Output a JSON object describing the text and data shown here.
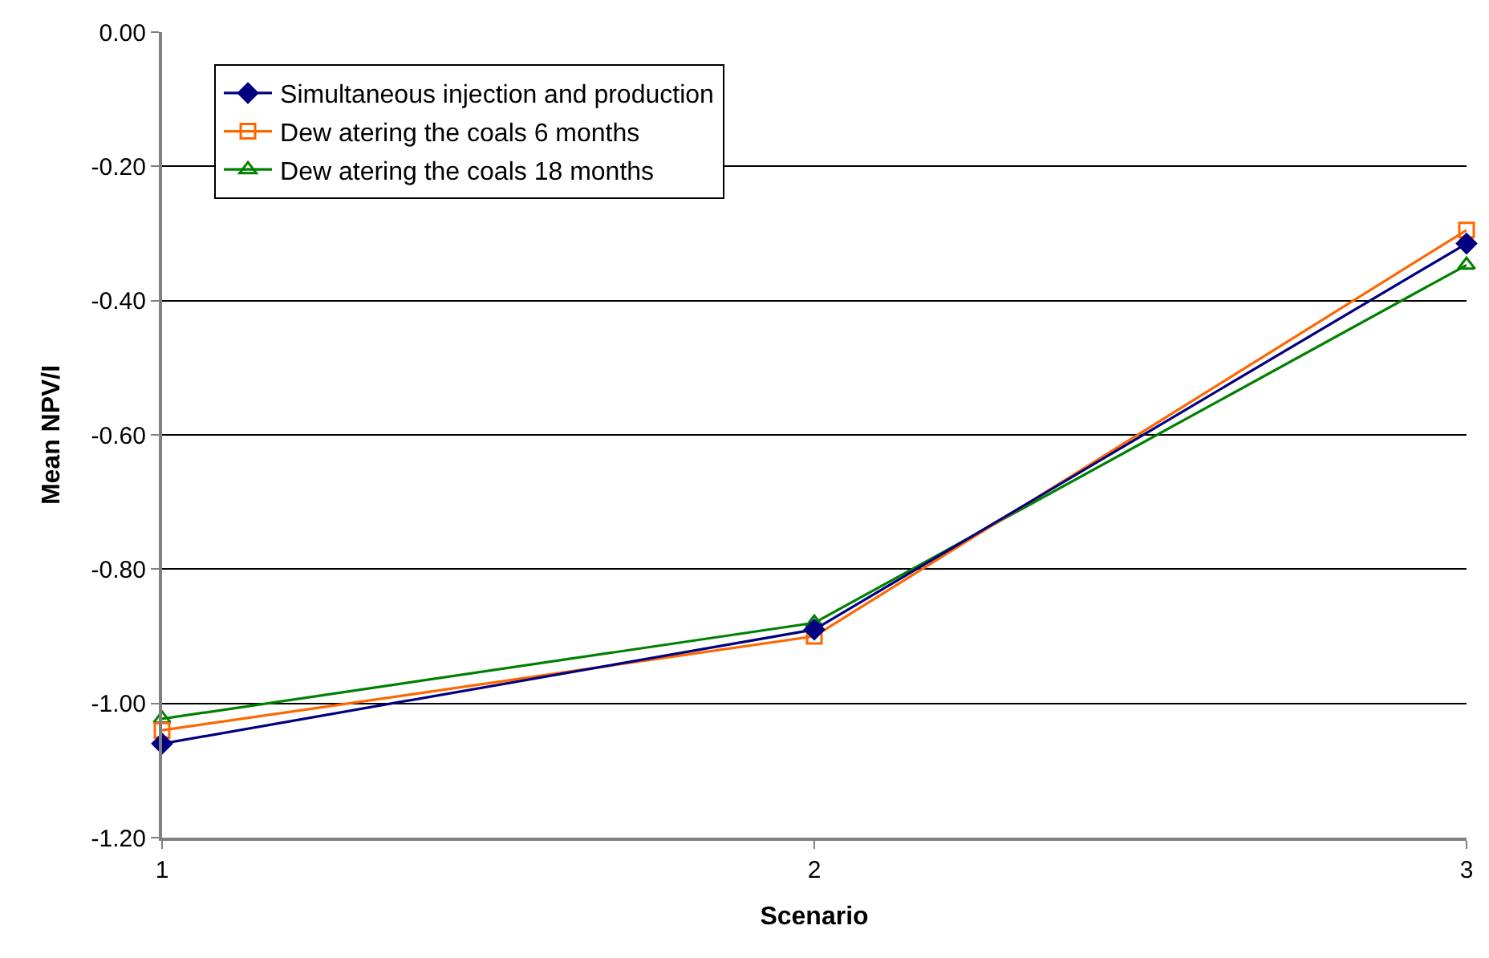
{
  "chart_data": {
    "type": "line",
    "xlabel": "Scenario",
    "ylabel": "Mean NPV/I",
    "x": [
      1,
      2,
      3
    ],
    "xlim": [
      1,
      3
    ],
    "xticks": [
      1,
      2,
      3
    ],
    "ylim": [
      -1.2,
      0
    ],
    "yticks": [
      {
        "value": -1.2,
        "label": "-1.20"
      },
      {
        "value": -1.0,
        "label": "-1.00"
      },
      {
        "value": -0.8,
        "label": "-0.80"
      },
      {
        "value": -0.6,
        "label": "-0.60"
      },
      {
        "value": -0.4,
        "label": "-0.40"
      },
      {
        "value": -0.2,
        "label": "-0.20"
      },
      {
        "value": 0,
        "label": "0.00"
      }
    ],
    "grid": "y",
    "legend": "top left",
    "line_style": "solid",
    "series": [
      {
        "name": "Simultaneous injection and production",
        "color": "#000080",
        "marker": "diamond",
        "values": [
          -1.06,
          -0.89,
          -0.315
        ]
      },
      {
        "name": "Dew atering the coals 6 months",
        "color": "#ff6600",
        "marker": "square",
        "values": [
          -1.04,
          -0.9,
          -0.295
        ]
      },
      {
        "name": "Dew atering the coals 18 months",
        "color": "#008000",
        "marker": "triangle",
        "values": [
          -1.023,
          -0.88,
          -0.347
        ]
      }
    ]
  }
}
